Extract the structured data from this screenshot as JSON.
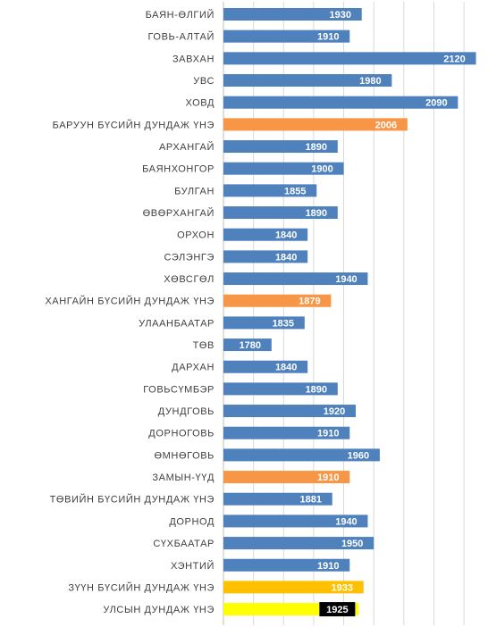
{
  "chart_data": {
    "type": "bar",
    "orientation": "horizontal",
    "title": "",
    "xlabel": "",
    "ylabel": "",
    "xlim": [
      1700,
      2140
    ],
    "grid": true,
    "legend": "none",
    "colors": {
      "province": "#4f81bd",
      "regional_average": "#f79646",
      "eastern_average": "#ffc000",
      "national_average": "#ffff00",
      "national_label_box": "#000000"
    },
    "categories": [
      "БАЯН-ӨЛГИЙ",
      "ГОВЬ-АЛТАЙ",
      "ЗАВХАН",
      "УВС",
      "ХОВД",
      "БАРУУН БҮСИЙН ДУНДАЖ ҮНЭ",
      "АРХАНГАЙ",
      "БАЯНХОНГОР",
      "БУЛГАН",
      "ӨВӨРХАНГАЙ",
      "ОРХОН",
      "СЭЛЭНГЭ",
      "ХӨВСГӨЛ",
      "ХАНГАЙН БҮСИЙН ДУНДАЖ ҮНЭ",
      "УЛААНБААТАР",
      "ТӨВ",
      "ДАРХАН",
      "ГОВЬСҮМБЭР",
      "ДУНДГОВЬ",
      "ДОРНОГОВЬ",
      "ӨМНӨГОВЬ",
      "ЗАМЫН-ҮҮД",
      "ТӨВИЙН БҮСИЙН ДУНДАЖ ҮНЭ",
      "ДОРНОД",
      "СҮХБААТАР",
      "ХЭНТИЙ",
      "ЗҮҮН БҮСИЙН ДУНДАЖ ҮНЭ",
      "УЛСЫН ДУНДАЖ ҮНЭ"
    ],
    "values": [
      1930,
      1910,
      2120,
      1980,
      2090,
      2006,
      1890,
      1900,
      1855,
      1890,
      1840,
      1840,
      1940,
      1879,
      1835,
      1780,
      1840,
      1890,
      1920,
      1910,
      1960,
      1910,
      1881,
      1940,
      1950,
      1910,
      1933,
      1925
    ],
    "bar_color_keys": [
      "province",
      "province",
      "province",
      "province",
      "province",
      "regional_average",
      "province",
      "province",
      "province",
      "province",
      "province",
      "province",
      "province",
      "regional_average",
      "province",
      "province",
      "province",
      "province",
      "province",
      "province",
      "province",
      "regional_average",
      "province",
      "province",
      "province",
      "province",
      "eastern_average",
      "national_average"
    ]
  }
}
